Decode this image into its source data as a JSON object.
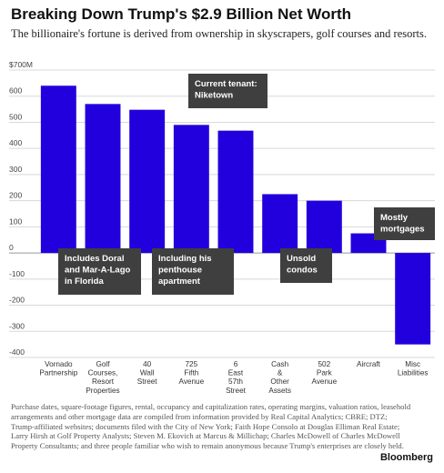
{
  "header": {
    "title": "Breaking Down Trump's $2.9 Billion Net Worth",
    "subtitle": "The billionaire's fortune is derived from ownership in skyscrapers, golf courses and resorts."
  },
  "chart_data": {
    "type": "bar",
    "categories": [
      [
        "Vornado",
        "Partnership"
      ],
      [
        "Golf",
        "Courses,",
        "Resort",
        "Properties"
      ],
      [
        "40",
        "Wall",
        "Street"
      ],
      [
        "725",
        "Fifth",
        "Avenue"
      ],
      [
        "6",
        "East",
        "57th",
        "Street"
      ],
      [
        "Cash",
        "&",
        "Other",
        "Assets"
      ],
      [
        "502",
        "Park",
        "Avenue"
      ],
      [
        "Aircraft"
      ],
      [
        "Misc",
        "Liabilities"
      ]
    ],
    "values": [
      640,
      570,
      548,
      490,
      468,
      225,
      200,
      75,
      -350
    ],
    "ylim": [
      -400,
      700
    ],
    "yticks": [
      -400,
      -300,
      -200,
      -100,
      0,
      100,
      200,
      300,
      400,
      500,
      600,
      700
    ],
    "ytick_labels": [
      "-400",
      "-300",
      "-200",
      "-100",
      "0",
      "100",
      "200",
      "300",
      "400",
      "500",
      "600",
      "$700M"
    ],
    "grid": true,
    "bar_color": "#2200dd",
    "annotations": [
      {
        "bar": 4,
        "lines": [
          "Current tenant:",
          "Niketown"
        ]
      },
      {
        "bar": 1,
        "lines": [
          "Includes Doral",
          "and Mar-A-Lago",
          "in Florida"
        ]
      },
      {
        "bar": 3,
        "lines": [
          "Including his",
          "penthouse",
          "apartment"
        ]
      },
      {
        "bar": 6,
        "lines": [
          "Unsold",
          "condos"
        ]
      },
      {
        "bar": 8,
        "lines": [
          "Mostly",
          "mortgages"
        ]
      }
    ]
  },
  "footer": {
    "note": "Purchase dates, square-footage figures, rental, occupancy and capitalization rates, operating margins, valuation ratios, leasehold arrangements and other mortgage data are compiled from information provided by Real Capital Analytics; CBRE; DTZ; Trump-affiliated websites; documents filed with the City of New York; Faith Hope Consolo at Douglas Elliman Real Estate; Larry Hirsh at Golf Property Analysts; Steven M. Ekovich at Marcus & Millichap; Charles McDowell of Charles McDowell Property Consultants; and three people familiar who wish to remain anonymous because Trump's enterprises are closely held.",
    "brand": "Bloomberg"
  }
}
